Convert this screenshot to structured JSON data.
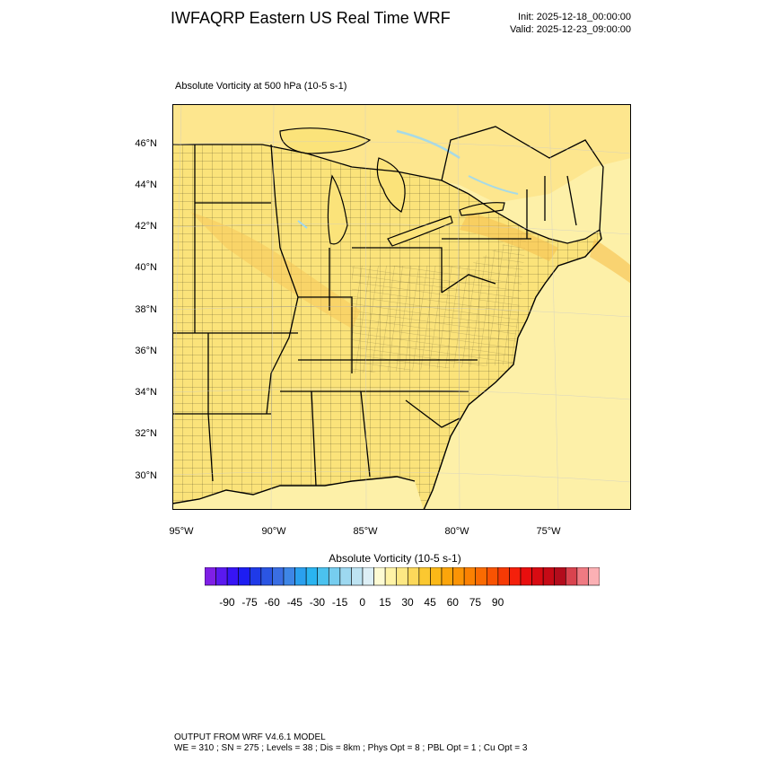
{
  "header": {
    "title": "IWFAQRP Eastern US Real Time WRF",
    "init": "Init: 2025-12-18_00:00:00",
    "valid": "Valid: 2025-12-23_09:00:00"
  },
  "field": {
    "title": "Absolute Vorticity at 500 hPa   (10-5 s-1)"
  },
  "map": {
    "lat_labels": [
      "46°N",
      "44°N",
      "42°N",
      "40°N",
      "38°N",
      "36°N",
      "34°N",
      "32°N",
      "30°N"
    ],
    "lon_labels": [
      "95°W",
      "90°W",
      "85°W",
      "80°W",
      "75°W"
    ],
    "land_color": "#fbe37a",
    "ocean_color": "#fdf0a8",
    "boundary_color": "#000000"
  },
  "colorbar": {
    "title": "Absolute Vorticity  (10-5 s-1)",
    "labels": [
      "-90",
      "-75",
      "-60",
      "-45",
      "-30",
      "-15",
      "0",
      "15",
      "30",
      "45",
      "60",
      "75",
      "90"
    ],
    "colors": [
      "#7f1fe6",
      "#5a19ef",
      "#3714f5",
      "#1d1df2",
      "#1f3ae8",
      "#2b55e3",
      "#3a6ee3",
      "#3e86e6",
      "#2aa0ee",
      "#2ab4f0",
      "#4bc2ef",
      "#76cdef",
      "#9dd8f0",
      "#bde3f2",
      "#ddeff6",
      "#fefbd3",
      "#fff3a6",
      "#fde884",
      "#fcd85a",
      "#fbc830",
      "#fbb817",
      "#fba50b",
      "#fb9405",
      "#fb8102",
      "#fa6b02",
      "#f95302",
      "#f63a05",
      "#f4200b",
      "#e90e0e",
      "#d80b12",
      "#c60a16",
      "#b30c1c",
      "#d9434e",
      "#ef7a82",
      "#fbb0b4"
    ]
  },
  "footer": {
    "line1": "OUTPUT FROM WRF V4.6.1 MODEL",
    "line2": "WE = 310 ; SN = 275 ; Levels = 38 ; Dis = 8km ; Phys Opt = 8 ; PBL Opt = 1 ; Cu Opt = 3"
  }
}
